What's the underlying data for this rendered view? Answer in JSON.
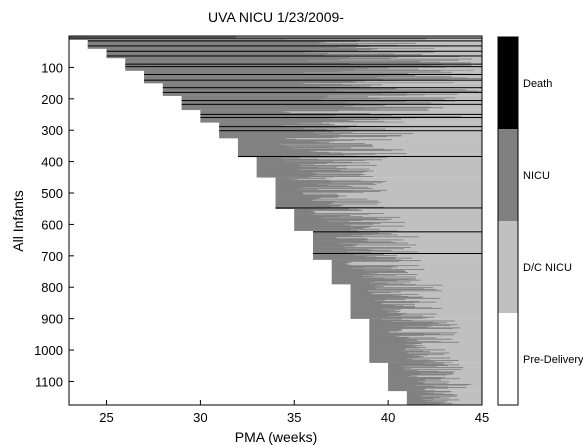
{
  "chart_data": {
    "type": "heatmap",
    "title": "UVA NICU 1/23/2009-",
    "xlabel": "PMA (weeks)",
    "ylabel": "All Infants",
    "xlim": [
      23,
      45
    ],
    "ylim": [
      1175,
      0
    ],
    "x_ticks": [
      25,
      30,
      35,
      40,
      45
    ],
    "y_ticks": [
      100,
      200,
      300,
      400,
      500,
      600,
      700,
      800,
      900,
      1000,
      1100
    ],
    "grid": false,
    "colorbar": {
      "position": "right",
      "categories": [
        {
          "name": "Death",
          "color": "#000000"
        },
        {
          "name": "NICU",
          "color": "#808080"
        },
        {
          "name": "D/C NICU",
          "color": "#c0c0c0"
        },
        {
          "name": "Pre-Delivery",
          "color": "#ffffff"
        }
      ]
    },
    "cohorts": [
      {
        "ga": 23,
        "start": 0,
        "end": 12,
        "nicu_min": 24,
        "nicu_max": 45
      },
      {
        "ga": 24,
        "start": 12,
        "end": 40,
        "nicu_min": 34,
        "nicu_max": 45
      },
      {
        "ga": 25,
        "start": 40,
        "end": 70,
        "nicu_min": 34,
        "nicu_max": 45
      },
      {
        "ga": 26,
        "start": 70,
        "end": 110,
        "nicu_min": 35,
        "nicu_max": 45
      },
      {
        "ga": 27,
        "start": 110,
        "end": 150,
        "nicu_min": 35,
        "nicu_max": 45
      },
      {
        "ga": 28,
        "start": 150,
        "end": 190,
        "nicu_min": 35,
        "nicu_max": 45
      },
      {
        "ga": 29,
        "start": 190,
        "end": 235,
        "nicu_min": 35,
        "nicu_max": 44
      },
      {
        "ga": 30,
        "start": 235,
        "end": 275,
        "nicu_min": 34,
        "nicu_max": 44
      },
      {
        "ga": 31,
        "start": 275,
        "end": 325,
        "nicu_min": 33.5,
        "nicu_max": 42
      },
      {
        "ga": 32,
        "start": 325,
        "end": 385,
        "nicu_min": 33.5,
        "nicu_max": 41
      },
      {
        "ga": 33,
        "start": 385,
        "end": 450,
        "nicu_min": 34,
        "nicu_max": 40
      },
      {
        "ga": 34,
        "start": 450,
        "end": 550,
        "nicu_min": 34.5,
        "nicu_max": 40
      },
      {
        "ga": 35,
        "start": 550,
        "end": 620,
        "nicu_min": 35.5,
        "nicu_max": 41
      },
      {
        "ga": 36,
        "start": 620,
        "end": 712,
        "nicu_min": 36.5,
        "nicu_max": 42
      },
      {
        "ga": 37,
        "start": 712,
        "end": 790,
        "nicu_min": 37.5,
        "nicu_max": 42
      },
      {
        "ga": 38,
        "start": 790,
        "end": 900,
        "nicu_min": 38.5,
        "nicu_max": 43
      },
      {
        "ga": 39,
        "start": 900,
        "end": 1040,
        "nicu_min": 39.5,
        "nicu_max": 44
      },
      {
        "ga": 40,
        "start": 1040,
        "end": 1130,
        "nicu_min": 40.3,
        "nicu_max": 44.5
      },
      {
        "ga": 41,
        "start": 1130,
        "end": 1175,
        "nicu_min": 41.3,
        "nicu_max": 44
      }
    ],
    "death_rows": [
      5,
      14,
      30,
      47,
      62,
      88,
      96,
      121,
      139,
      163,
      178,
      204,
      216,
      248,
      258,
      287,
      300,
      382,
      546,
      622,
      691
    ]
  }
}
